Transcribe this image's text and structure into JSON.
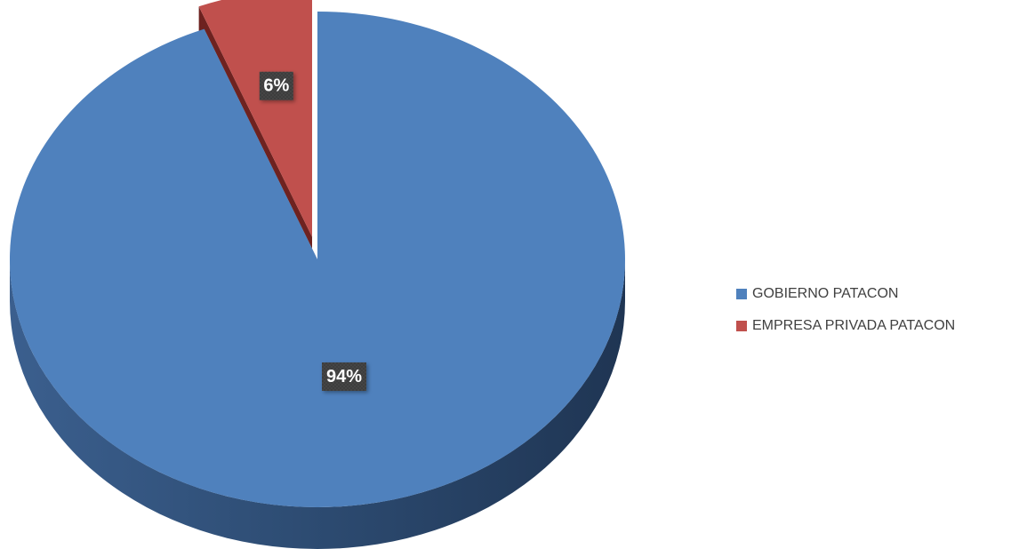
{
  "chart_data": {
    "type": "pie",
    "title": "",
    "style": "3d-exploded",
    "slices": [
      {
        "label": "GOBIERNO PATACON",
        "value": 94,
        "data_label": "94%",
        "color": "#4F81BD",
        "side_color": "#2A4A70",
        "exploded": false
      },
      {
        "label": "EMPRESA PRIVADA PATACON",
        "value": 6,
        "data_label": "6%",
        "color": "#C0504D",
        "side_color": "#6E2220",
        "exploded": true
      }
    ],
    "legend_position": "right",
    "data_label_box_color": "#404040"
  }
}
